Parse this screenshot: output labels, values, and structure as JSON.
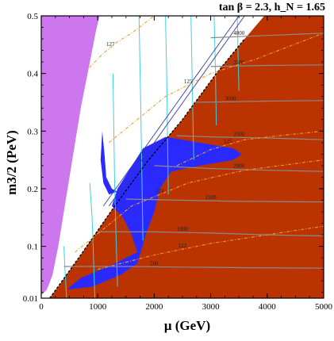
{
  "chart_data": {
    "type": "area",
    "title": "tan β = 2.3, h_N = 1.65",
    "xlabel": "μ  (GeV)",
    "ylabel": "m3/2 (PeV)",
    "xlim": [
      0,
      5000
    ],
    "ylim": [
      0.01,
      0.5
    ],
    "x_ticks": [
      0,
      1000,
      2000,
      3000,
      4000,
      5000
    ],
    "y_ticks": [
      0.01,
      0.1,
      0.2,
      0.3,
      0.4,
      0.5
    ],
    "x_tick_labels": [
      "0",
      "1000",
      "2000",
      "3000",
      "4000",
      "5000"
    ],
    "y_tick_labels": [
      "0.01",
      "0.1",
      "0.2",
      "0.3",
      "0.4",
      "0.5"
    ],
    "grid": false,
    "regions": [
      {
        "name": "",
        "color": "#cc77ee",
        "points": [
          [
            0,
            0.5
          ],
          [
            1030,
            0.5
          ],
          [
            960,
            0.47
          ],
          [
            880,
            0.43
          ],
          [
            800,
            0.39
          ],
          [
            700,
            0.34
          ],
          [
            600,
            0.28
          ],
          [
            500,
            0.22
          ],
          [
            400,
            0.16
          ],
          [
            300,
            0.1
          ],
          [
            200,
            0.05
          ],
          [
            100,
            0.025
          ],
          [
            0,
            0.015
          ]
        ]
      },
      {
        "name": "",
        "color": "#bb3300",
        "points": [
          [
            5000,
            0.5
          ],
          [
            3950,
            0.5
          ],
          [
            3600,
            0.46
          ],
          [
            3100,
            0.4
          ],
          [
            2500,
            0.32
          ],
          [
            1900,
            0.25
          ],
          [
            1300,
            0.17
          ],
          [
            700,
            0.085
          ],
          [
            300,
            0.03
          ],
          [
            150,
            0.01
          ],
          [
            5000,
            0.01
          ]
        ]
      },
      {
        "name": "",
        "color": "#2a2aff",
        "points": [
          [
            1350,
            0.2
          ],
          [
            1800,
            0.27
          ],
          [
            2200,
            0.29
          ],
          [
            2800,
            0.28
          ],
          [
            3400,
            0.27
          ],
          [
            3550,
            0.26
          ],
          [
            3400,
            0.25
          ],
          [
            2800,
            0.24
          ],
          [
            2300,
            0.23
          ],
          [
            2100,
            0.2
          ],
          [
            2000,
            0.16
          ],
          [
            1850,
            0.12
          ],
          [
            1700,
            0.07
          ],
          [
            1400,
            0.05
          ],
          [
            900,
            0.03
          ],
          [
            450,
            0.025
          ],
          [
            700,
            0.045
          ],
          [
            1300,
            0.07
          ],
          [
            1700,
            0.09
          ],
          [
            1600,
            0.12
          ],
          [
            1450,
            0.15
          ],
          [
            1250,
            0.17
          ]
        ]
      },
      {
        "name": "",
        "color": "#2a2aff",
        "points": [
          [
            1080,
            0.3
          ],
          [
            1050,
            0.25
          ],
          [
            1100,
            0.21
          ],
          [
            1200,
            0.19
          ],
          [
            1350,
            0.195
          ],
          [
            1250,
            0.2
          ],
          [
            1150,
            0.22
          ],
          [
            1120,
            0.26
          ]
        ]
      }
    ],
    "series": [
      {
        "name": "",
        "label": "4000",
        "color": "#8a8a8a",
        "x": [
          3000,
          4000,
          5000
        ],
        "y": [
          0.462,
          0.466,
          0.47
        ]
      },
      {
        "name": "",
        "label": "3500",
        "color": "#8a8a8a",
        "x": [
          3000,
          4000,
          5000
        ],
        "y": [
          0.412,
          0.414,
          0.415
        ]
      },
      {
        "name": "",
        "label": "3000",
        "color": "#8a8a8a",
        "x": [
          2700,
          4000,
          5000
        ],
        "y": [
          0.35,
          0.352,
          0.353
        ]
      },
      {
        "name": "",
        "label": "2500",
        "color": "#8a8a8a",
        "x": [
          2400,
          3000,
          4000,
          5000
        ],
        "y": [
          0.292,
          0.29,
          0.288,
          0.285
        ]
      },
      {
        "name": "",
        "label": "2000",
        "color": "#8a8a8a",
        "x": [
          2000,
          3000,
          4000,
          5000
        ],
        "y": [
          0.24,
          0.235,
          0.232,
          0.23
        ]
      },
      {
        "name": "",
        "label": "1500",
        "color": "#8a8a8a",
        "x": [
          1500,
          2500,
          3500,
          5000
        ],
        "y": [
          0.182,
          0.18,
          0.178,
          0.177
        ]
      },
      {
        "name": "",
        "label": "1000",
        "color": "#8a8a8a",
        "x": [
          1000,
          2000,
          3000,
          4000,
          5000
        ],
        "y": [
          0.125,
          0.125,
          0.123,
          0.12,
          0.118
        ]
      },
      {
        "name": "",
        "label": "500",
        "color": "#8a8a8a",
        "x": [
          400,
          1500,
          2500,
          3500,
          5000
        ],
        "y": [
          0.065,
          0.065,
          0.064,
          0.063,
          0.062
        ]
      },
      {
        "name": "",
        "label": "127",
        "color": "#e8a030",
        "x": [
          850,
          1100,
          1350,
          1600,
          2000
        ],
        "y": [
          0.41,
          0.435,
          0.455,
          0.47,
          0.5
        ]
      },
      {
        "name": "",
        "label": "125",
        "color": "#e8a030",
        "x": [
          1200,
          2200,
          3000,
          3800,
          5000
        ],
        "y": [
          0.28,
          0.36,
          0.4,
          0.425,
          0.47
        ]
      },
      {
        "name": "",
        "label": "125",
        "color": "#e8a030",
        "x": [
          2400,
          3000,
          3600,
          4300,
          5000
        ],
        "y": [
          0.24,
          0.268,
          0.285,
          0.293,
          0.3
        ]
      },
      {
        "name": "",
        "label": "124",
        "color": "#e8a030",
        "x": [
          600,
          1600,
          2600,
          3600,
          5000
        ],
        "y": [
          0.09,
          0.17,
          0.21,
          0.232,
          0.25
        ]
      },
      {
        "name": "",
        "label": "122",
        "color": "#e8a030",
        "x": [
          1000,
          2000,
          3000,
          4000,
          5000
        ],
        "y": [
          0.06,
          0.085,
          0.105,
          0.12,
          0.135
        ]
      }
    ],
    "vertical_contours": {
      "color": "#40d0e0",
      "lines": [
        {
          "x": [
            450,
            420,
            400
          ],
          "y": [
            0.01,
            0.06,
            0.1
          ]
        },
        {
          "x": [
            950,
            900,
            860
          ],
          "y": [
            0.01,
            0.15,
            0.21
          ]
        },
        {
          "x": [
            1350,
            1300,
            1270
          ],
          "y": [
            0.03,
            0.2,
            0.4
          ]
        },
        {
          "x": [
            1800,
            1760,
            1730
          ],
          "y": [
            0.11,
            0.35,
            0.5
          ]
        },
        {
          "x": [
            2250,
            2220,
            2200
          ],
          "y": [
            0.19,
            0.4,
            0.5
          ]
        },
        {
          "x": [
            2700,
            2670,
            2650
          ],
          "y": [
            0.25,
            0.4,
            0.5
          ]
        },
        {
          "x": [
            3100,
            3080,
            3060
          ],
          "y": [
            0.31,
            0.42,
            0.5
          ]
        },
        {
          "x": [
            3500,
            3480,
            3470
          ],
          "y": [
            0.37,
            0.45,
            0.5
          ]
        }
      ]
    },
    "boundary_lines": {
      "color": "#3a3aaa",
      "lines": [
        {
          "x": [
            1100,
            3500
          ],
          "y": [
            0.17,
            0.5
          ]
        },
        {
          "x": [
            1200,
            3600
          ],
          "y": [
            0.17,
            0.5
          ]
        }
      ]
    },
    "dashed_boundary": {
      "color": "#000000",
      "x": [
        150,
        700,
        1300,
        1900,
        2500,
        3100,
        3600
      ],
      "y": [
        0.01,
        0.085,
        0.17,
        0.25,
        0.32,
        0.4,
        0.46
      ]
    }
  }
}
